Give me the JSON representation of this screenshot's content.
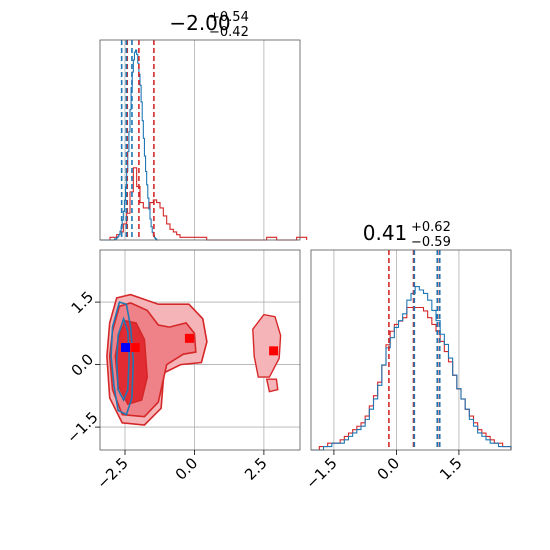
{
  "colors": {
    "red": "#d62728",
    "blue": "#1f77b4",
    "fill_light": "#f5b5b8",
    "fill_mid": "#ee8288",
    "fill_dark": "#e22c33",
    "grid": "#b0b0b0",
    "marker_red": "#ff0000",
    "marker_blue": "#0000ff"
  },
  "chart_data": {
    "type": "corner",
    "parameters": [
      "x",
      "y"
    ],
    "titles": {
      "x": {
        "center": "−2.00",
        "upper": "+0.54",
        "lower": "−0.42"
      },
      "y": {
        "center": "0.41",
        "upper": "+0.62",
        "lower": "−0.59"
      }
    },
    "xlim": [
      -3.4,
      3.8
    ],
    "ylim": [
      -2.05,
      2.75
    ],
    "x_ticks": [
      -2.5,
      0.0,
      2.5
    ],
    "x_tick_labels": [
      "−2.5",
      "0.0",
      "2.5"
    ],
    "y_ticks": [
      -1.5,
      0.0,
      1.5
    ],
    "y_tick_labels": [
      "−1.5",
      "0.0",
      "1.5"
    ],
    "grid": true,
    "quantile_lines": {
      "x_red": [
        -2.42,
        -2.0,
        -1.46
      ],
      "x_blue": [
        -2.62,
        -2.45,
        -2.25
      ],
      "y_red": [
        -0.18,
        0.41,
        1.03
      ],
      "y_blue": [
        0.43,
        0.98,
        1.04
      ]
    },
    "x_hist_red": {
      "bin_edges_start": -3.4,
      "bin_width": 0.12,
      "counts": [
        0,
        0,
        0,
        1,
        1,
        2,
        3,
        6,
        10,
        18,
        27,
        20,
        14,
        12,
        12,
        14,
        15,
        14,
        12,
        9,
        6,
        4,
        3,
        2,
        1,
        1,
        1,
        1,
        1,
        1,
        1,
        1,
        0,
        0,
        0,
        0,
        0,
        0,
        0,
        0,
        0,
        0,
        0,
        0,
        0,
        0,
        0,
        0,
        0,
        0,
        1,
        1,
        1,
        0,
        0,
        0,
        0,
        0,
        0,
        1,
        1,
        1
      ]
    },
    "x_hist_blue": {
      "bin_edges_start": -3.4,
      "bin_width": 0.04,
      "counts": [
        0,
        0,
        0,
        0,
        0,
        0,
        0,
        0,
        0,
        0,
        0,
        0,
        0,
        1,
        1,
        2,
        3,
        5,
        8,
        12,
        18,
        26,
        36,
        48,
        62,
        80,
        98,
        118,
        138,
        152,
        163,
        170,
        172,
        168,
        160,
        150,
        140,
        125,
        108,
        92,
        76,
        62,
        50,
        38,
        28,
        19,
        12,
        7,
        4,
        2,
        1,
        0,
        0
      ]
    },
    "y_hist_red": {
      "bin_edges_start": -2.05,
      "bin_width": 0.1,
      "counts": [
        0,
        0,
        1,
        1,
        2,
        2,
        2,
        3,
        4,
        5,
        6,
        7,
        8,
        10,
        13,
        16,
        20,
        25,
        31,
        35,
        37,
        38,
        39,
        42,
        42,
        42,
        42,
        41,
        39,
        37,
        35,
        32,
        29,
        26,
        22,
        18,
        15,
        12,
        10,
        8,
        6,
        5,
        4,
        3,
        2,
        2,
        1,
        1
      ]
    },
    "y_hist_blue": {
      "bin_edges_start": -2.05,
      "bin_width": 0.1,
      "counts": [
        0,
        0,
        0,
        1,
        1,
        2,
        2,
        2,
        3,
        4,
        5,
        6,
        7,
        9,
        12,
        15,
        19,
        25,
        30,
        33,
        36,
        38,
        40,
        44,
        46,
        48,
        47,
        46,
        44,
        41,
        38,
        34,
        31,
        27,
        22,
        18,
        15,
        12,
        9,
        7,
        5,
        4,
        3,
        2,
        2,
        1,
        1,
        1
      ]
    },
    "contours_2d": {
      "red_fill_levels": [
        [
          [
            -3.05,
            1.0
          ],
          [
            -2.8,
            1.6
          ],
          [
            -2.3,
            1.68
          ],
          [
            -1.3,
            1.45
          ],
          [
            -0.2,
            1.45
          ],
          [
            0.3,
            1.1
          ],
          [
            0.45,
            0.55
          ],
          [
            0.25,
            0.05
          ],
          [
            -0.5,
            0.0
          ],
          [
            -1.1,
            -0.2
          ],
          [
            -1.2,
            -1.05
          ],
          [
            -1.8,
            -1.45
          ],
          [
            -2.6,
            -1.4
          ],
          [
            -3.05,
            -0.8
          ],
          [
            -3.15,
            0.2
          ]
        ],
        [
          [
            -2.95,
            0.8
          ],
          [
            -2.7,
            1.4
          ],
          [
            -2.3,
            1.48
          ],
          [
            -1.7,
            1.3
          ],
          [
            -1.3,
            0.95
          ],
          [
            -0.9,
            0.9
          ],
          [
            -0.3,
            1.0
          ],
          [
            0.0,
            0.75
          ],
          [
            0.05,
            0.3
          ],
          [
            -0.4,
            0.25
          ],
          [
            -1.0,
            0.0
          ],
          [
            -1.3,
            -0.9
          ],
          [
            -1.8,
            -1.25
          ],
          [
            -2.6,
            -1.2
          ],
          [
            -2.95,
            -0.6
          ],
          [
            -3.05,
            0.2
          ]
        ],
        [
          [
            -2.75,
            0.6
          ],
          [
            -2.5,
            1.05
          ],
          [
            -2.1,
            1.0
          ],
          [
            -1.8,
            0.6
          ],
          [
            -1.7,
            -0.3
          ],
          [
            -1.9,
            -0.85
          ],
          [
            -2.4,
            -0.95
          ],
          [
            -2.75,
            -0.5
          ],
          [
            -2.85,
            0.2
          ]
        ]
      ],
      "red_islands": [
        [
          [
            2.1,
            0.85
          ],
          [
            2.5,
            1.2
          ],
          [
            2.9,
            1.15
          ],
          [
            3.1,
            0.7
          ],
          [
            3.05,
            0.15
          ],
          [
            2.7,
            -0.3
          ],
          [
            2.3,
            -0.3
          ],
          [
            2.15,
            0.2
          ]
        ],
        [
          [
            2.6,
            -0.35
          ],
          [
            2.95,
            -0.35
          ],
          [
            3.0,
            -0.6
          ],
          [
            2.7,
            -0.65
          ]
        ]
      ],
      "blue_levels": [
        [
          [
            -2.95,
            0.9
          ],
          [
            -2.7,
            1.5
          ],
          [
            -2.45,
            1.45
          ],
          [
            -2.3,
            0.9
          ],
          [
            -2.2,
            0.1
          ],
          [
            -2.25,
            -0.8
          ],
          [
            -2.45,
            -1.2
          ],
          [
            -2.75,
            -1.1
          ],
          [
            -2.9,
            -0.5
          ],
          [
            -3.0,
            0.2
          ]
        ],
        [
          [
            -2.75,
            0.7
          ],
          [
            -2.55,
            1.1
          ],
          [
            -2.4,
            0.8
          ],
          [
            -2.35,
            0.2
          ],
          [
            -2.4,
            -0.6
          ],
          [
            -2.55,
            -0.85
          ],
          [
            -2.75,
            -0.6
          ],
          [
            -2.8,
            0.1
          ]
        ]
      ]
    },
    "markers_2d": [
      {
        "x": -2.48,
        "y": 0.41,
        "color": "marker_blue"
      },
      {
        "x": -2.13,
        "y": 0.41,
        "color": "marker_red"
      },
      {
        "x": -0.18,
        "y": 0.63,
        "color": "marker_red"
      },
      {
        "x": 2.85,
        "y": 0.33,
        "color": "marker_red"
      }
    ]
  }
}
